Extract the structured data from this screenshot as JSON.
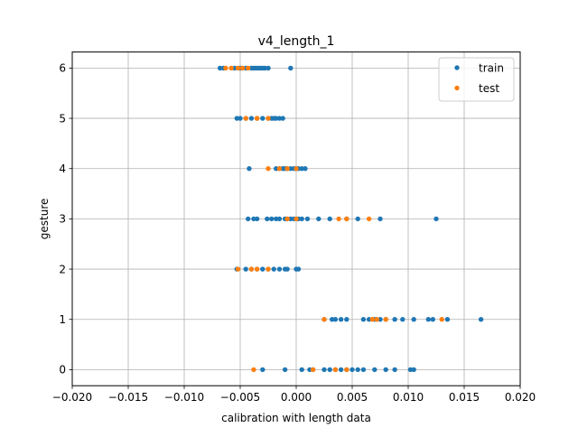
{
  "chart_data": {
    "type": "scatter",
    "title": "v4_length_1",
    "xlabel": "calibration with length data",
    "ylabel": "gesture",
    "xlim": [
      -0.02,
      0.02
    ],
    "ylim": [
      -0.32,
      6.32
    ],
    "grid": true,
    "legend_position": "top-right",
    "x_ticks": [
      -0.02,
      -0.015,
      -0.01,
      -0.005,
      0.0,
      0.005,
      0.01,
      0.015,
      0.02
    ],
    "x_tick_labels": [
      "−0.020",
      "−0.015",
      "−0.010",
      "−0.005",
      "0.000",
      "0.005",
      "0.010",
      "0.015",
      "0.020"
    ],
    "y_ticks": [
      0,
      1,
      2,
      3,
      4,
      5,
      6
    ],
    "y_tick_labels": [
      "0",
      "1",
      "2",
      "3",
      "4",
      "5",
      "6"
    ],
    "series": [
      {
        "name": "train",
        "color": "#1f77b4",
        "points": [
          [
            -0.0068,
            6
          ],
          [
            -0.0065,
            6
          ],
          [
            -0.0055,
            6
          ],
          [
            -0.005,
            6
          ],
          [
            -0.0045,
            6
          ],
          [
            -0.004,
            6
          ],
          [
            -0.0038,
            6
          ],
          [
            -0.0036,
            6
          ],
          [
            -0.0034,
            6
          ],
          [
            -0.0032,
            6
          ],
          [
            -0.003,
            6
          ],
          [
            -0.0028,
            6
          ],
          [
            -0.0025,
            6
          ],
          [
            -0.0005,
            6
          ],
          [
            -0.0053,
            5
          ],
          [
            -0.005,
            5
          ],
          [
            -0.0045,
            5
          ],
          [
            -0.004,
            5
          ],
          [
            -0.0035,
            5
          ],
          [
            -0.003,
            5
          ],
          [
            -0.0025,
            5
          ],
          [
            -0.0022,
            5
          ],
          [
            -0.002,
            5
          ],
          [
            -0.0018,
            5
          ],
          [
            -0.0015,
            5
          ],
          [
            -0.0012,
            5
          ],
          [
            -0.0042,
            4
          ],
          [
            -0.0018,
            4
          ],
          [
            -0.0015,
            4
          ],
          [
            -0.0012,
            4
          ],
          [
            -0.001,
            4
          ],
          [
            -0.0008,
            4
          ],
          [
            -0.0005,
            4
          ],
          [
            -0.0002,
            4
          ],
          [
            0.0,
            4
          ],
          [
            0.0002,
            4
          ],
          [
            0.0005,
            4
          ],
          [
            0.0008,
            4
          ],
          [
            -0.0043,
            3
          ],
          [
            -0.0038,
            3
          ],
          [
            -0.0035,
            3
          ],
          [
            -0.0026,
            3
          ],
          [
            -0.0022,
            3
          ],
          [
            -0.0018,
            3
          ],
          [
            -0.0015,
            3
          ],
          [
            -0.001,
            3
          ],
          [
            -0.0008,
            3
          ],
          [
            -0.0005,
            3
          ],
          [
            -0.0002,
            3
          ],
          [
            0.0002,
            3
          ],
          [
            0.0005,
            3
          ],
          [
            0.001,
            3
          ],
          [
            0.002,
            3
          ],
          [
            0.003,
            3
          ],
          [
            0.0045,
            3
          ],
          [
            0.0055,
            3
          ],
          [
            0.0075,
            3
          ],
          [
            0.0125,
            3
          ],
          [
            -0.0053,
            2
          ],
          [
            -0.0045,
            2
          ],
          [
            -0.004,
            2
          ],
          [
            -0.0035,
            2
          ],
          [
            -0.003,
            2
          ],
          [
            -0.0025,
            2
          ],
          [
            -0.002,
            2
          ],
          [
            -0.0015,
            2
          ],
          [
            -0.001,
            2
          ],
          [
            -0.0008,
            2
          ],
          [
            0.0,
            2
          ],
          [
            0.0002,
            2
          ],
          [
            0.0025,
            1
          ],
          [
            0.0032,
            1
          ],
          [
            0.0035,
            1
          ],
          [
            0.004,
            1
          ],
          [
            0.0045,
            1
          ],
          [
            0.006,
            1
          ],
          [
            0.0065,
            1
          ],
          [
            0.007,
            1
          ],
          [
            0.0075,
            1
          ],
          [
            0.008,
            1
          ],
          [
            0.0088,
            1
          ],
          [
            0.0095,
            1
          ],
          [
            0.0105,
            1
          ],
          [
            0.0118,
            1
          ],
          [
            0.0122,
            1
          ],
          [
            0.0135,
            1
          ],
          [
            0.0165,
            1
          ],
          [
            -0.003,
            0
          ],
          [
            -0.001,
            0
          ],
          [
            0.0005,
            0
          ],
          [
            0.0012,
            0
          ],
          [
            0.0015,
            0
          ],
          [
            0.0025,
            0
          ],
          [
            0.003,
            0
          ],
          [
            0.0035,
            0
          ],
          [
            0.004,
            0
          ],
          [
            0.0045,
            0
          ],
          [
            0.005,
            0
          ],
          [
            0.0055,
            0
          ],
          [
            0.006,
            0
          ],
          [
            0.007,
            0
          ],
          [
            0.008,
            0
          ],
          [
            0.0088,
            0
          ],
          [
            0.0102,
            0
          ],
          [
            0.0105,
            0
          ]
        ]
      },
      {
        "name": "test",
        "color": "#ff7f0e",
        "points": [
          [
            -0.0063,
            6
          ],
          [
            -0.0058,
            6
          ],
          [
            -0.0052,
            6
          ],
          [
            -0.0048,
            6
          ],
          [
            -0.0043,
            6
          ],
          [
            -0.0045,
            5
          ],
          [
            -0.0035,
            5
          ],
          [
            -0.0025,
            5
          ],
          [
            -0.0025,
            4
          ],
          [
            -0.0015,
            4
          ],
          [
            -0.0008,
            4
          ],
          [
            0.0,
            4
          ],
          [
            -0.0008,
            3
          ],
          [
            0.0,
            3
          ],
          [
            0.0038,
            3
          ],
          [
            0.0045,
            3
          ],
          [
            0.0065,
            3
          ],
          [
            -0.0052,
            2
          ],
          [
            -0.004,
            2
          ],
          [
            -0.0035,
            2
          ],
          [
            -0.0025,
            2
          ],
          [
            0.0025,
            1
          ],
          [
            0.0068,
            1
          ],
          [
            0.0072,
            1
          ],
          [
            0.008,
            1
          ],
          [
            0.013,
            1
          ],
          [
            -0.0038,
            0
          ],
          [
            0.0015,
            0
          ],
          [
            0.0035,
            0
          ],
          [
            0.0045,
            0
          ]
        ]
      }
    ]
  }
}
